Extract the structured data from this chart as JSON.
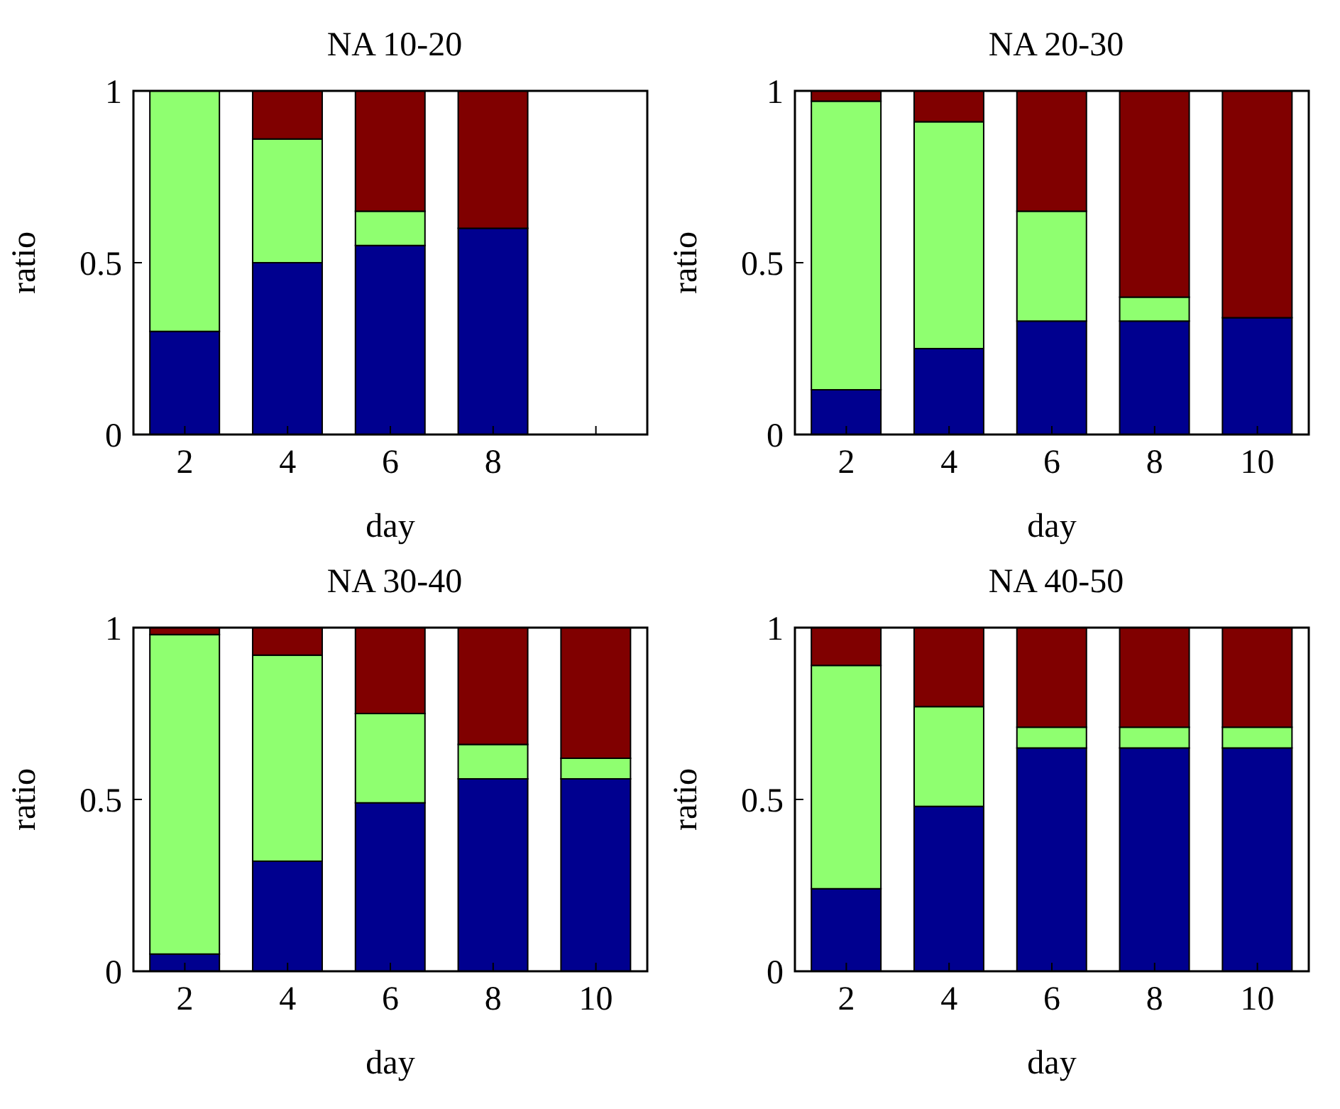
{
  "chart_data": [
    {
      "type": "bar",
      "title": "NA 10-20",
      "xlabel": "day",
      "ylabel": "ratio",
      "categories": [
        "2",
        "4",
        "6",
        "8",
        null
      ],
      "stacked": true,
      "ylim": [
        0,
        1
      ],
      "yticks": [
        0,
        0.5,
        1
      ],
      "series": [
        {
          "color": "#00008f",
          "values": [
            0.3,
            0.5,
            0.55,
            0.6,
            null
          ]
        },
        {
          "color": "#8fff70",
          "values": [
            0.7,
            0.36,
            0.1,
            0,
            null
          ]
        },
        {
          "color": "#800000",
          "values": [
            0,
            0.14,
            0.35,
            0.4,
            null
          ]
        }
      ]
    },
    {
      "type": "bar",
      "title": "NA 20-30",
      "xlabel": "day",
      "ylabel": "ratio",
      "categories": [
        "2",
        "4",
        "6",
        "8",
        "10"
      ],
      "stacked": true,
      "ylim": [
        0,
        1
      ],
      "yticks": [
        0,
        0.5,
        1
      ],
      "series": [
        {
          "color": "#00008f",
          "values": [
            0.13,
            0.25,
            0.33,
            0.33,
            0.34
          ]
        },
        {
          "color": "#8fff70",
          "values": [
            0.84,
            0.66,
            0.32,
            0.07,
            0
          ]
        },
        {
          "color": "#800000",
          "values": [
            0.03,
            0.09,
            0.35,
            0.6,
            0.66
          ]
        }
      ]
    },
    {
      "type": "bar",
      "title": "NA 30-40",
      "xlabel": "day",
      "ylabel": "ratio",
      "categories": [
        "2",
        "4",
        "6",
        "8",
        "10"
      ],
      "stacked": true,
      "ylim": [
        0,
        1
      ],
      "yticks": [
        0,
        0.5,
        1
      ],
      "series": [
        {
          "color": "#00008f",
          "values": [
            0.05,
            0.32,
            0.49,
            0.56,
            0.56
          ]
        },
        {
          "color": "#8fff70",
          "values": [
            0.93,
            0.6,
            0.26,
            0.1,
            0.06
          ]
        },
        {
          "color": "#800000",
          "values": [
            0.02,
            0.08,
            0.25,
            0.34,
            0.38
          ]
        }
      ]
    },
    {
      "type": "bar",
      "title": "NA 40-50",
      "xlabel": "day",
      "ylabel": "ratio",
      "categories": [
        "2",
        "4",
        "6",
        "8",
        "10"
      ],
      "stacked": true,
      "ylim": [
        0,
        1
      ],
      "yticks": [
        0,
        0.5,
        1
      ],
      "series": [
        {
          "color": "#00008f",
          "values": [
            0.24,
            0.48,
            0.65,
            0.65,
            0.65
          ]
        },
        {
          "color": "#8fff70",
          "values": [
            0.65,
            0.29,
            0.06,
            0.06,
            0.06
          ]
        },
        {
          "color": "#800000",
          "values": [
            0.11,
            0.23,
            0.29,
            0.29,
            0.29
          ]
        }
      ]
    }
  ]
}
